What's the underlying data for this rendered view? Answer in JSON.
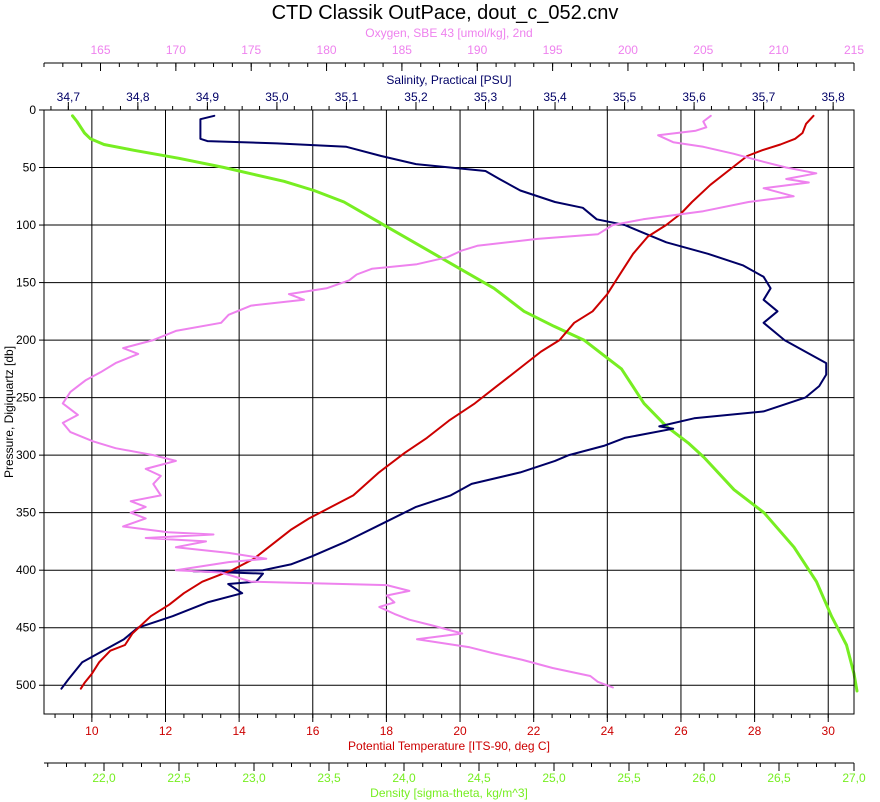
{
  "chart_data": {
    "type": "line",
    "title": "CTD Classik OutPace, dout_c_052.cnv",
    "grid": true,
    "y_axis": {
      "label": "Pressure, Digiquartz [db]",
      "range": [
        0,
        525
      ],
      "inverted": true,
      "ticks": [
        "0",
        "50",
        "100",
        "150",
        "200",
        "250",
        "300",
        "350",
        "400",
        "450",
        "500"
      ],
      "color": "#000000"
    },
    "x_axes": [
      {
        "id": "oxygen",
        "label": "Oxygen, SBE 43 [umol/kg], 2nd",
        "color": "#ee82ee",
        "position": "top",
        "range": [
          161.25,
          215
        ],
        "ticks": [
          "165",
          "170",
          "175",
          "180",
          "185",
          "190",
          "195",
          "200",
          "205",
          "210",
          "215"
        ]
      },
      {
        "id": "salinity",
        "label": "Salinity, Practical [PSU]",
        "color": "#000066",
        "position": "top",
        "range": [
          34.665,
          35.83
        ],
        "ticks": [
          "34,7",
          "34,8",
          "34,9",
          "35,0",
          "35,1",
          "35,2",
          "35,3",
          "35,4",
          "35,5",
          "35,6",
          "35,7",
          "35,8"
        ]
      },
      {
        "id": "temperature",
        "label": "Potential Temperature [ITS-90, deg C]",
        "color": "#cc0000",
        "position": "bottom",
        "range": [
          8.7,
          30.7
        ],
        "ticks": [
          "10",
          "12",
          "14",
          "16",
          "18",
          "20",
          "22",
          "24",
          "26",
          "28",
          "30"
        ]
      },
      {
        "id": "density",
        "label": "Density [sigma-theta, kg/m^3]",
        "color": "#77ee22",
        "position": "bottom",
        "range": [
          21.6,
          27.0
        ],
        "ticks": [
          "22,0",
          "22,5",
          "23,0",
          "23,5",
          "24,0",
          "24,5",
          "25,0",
          "25,5",
          "26,0",
          "26,5",
          "27,0"
        ]
      }
    ],
    "series": [
      {
        "axis": "density",
        "color": "#77ee22",
        "points": [
          [
            21.79,
            5
          ],
          [
            21.82,
            10
          ],
          [
            21.87,
            20
          ],
          [
            21.91,
            25
          ],
          [
            22.0,
            30
          ],
          [
            22.2,
            35
          ],
          [
            22.5,
            42
          ],
          [
            22.8,
            50
          ],
          [
            23.0,
            56
          ],
          [
            23.2,
            62
          ],
          [
            23.4,
            70
          ],
          [
            23.6,
            80
          ],
          [
            23.8,
            95
          ],
          [
            24.0,
            110
          ],
          [
            24.2,
            125
          ],
          [
            24.4,
            140
          ],
          [
            24.6,
            155
          ],
          [
            24.7,
            165
          ],
          [
            24.8,
            175
          ],
          [
            25.0,
            188
          ],
          [
            25.2,
            200
          ],
          [
            25.35,
            215
          ],
          [
            25.45,
            225
          ],
          [
            25.5,
            235
          ],
          [
            25.6,
            255
          ],
          [
            25.75,
            275
          ],
          [
            25.9,
            290
          ],
          [
            26.0,
            302
          ],
          [
            26.2,
            330
          ],
          [
            26.4,
            350
          ],
          [
            26.6,
            380
          ],
          [
            26.75,
            410
          ],
          [
            26.85,
            440
          ],
          [
            26.95,
            465
          ],
          [
            27.0,
            490
          ],
          [
            27.02,
            505
          ]
        ]
      },
      {
        "axis": "salinity",
        "color": "#000066",
        "points": [
          [
            34.91,
            5
          ],
          [
            34.89,
            8
          ],
          [
            34.89,
            15
          ],
          [
            34.89,
            25
          ],
          [
            34.9,
            27
          ],
          [
            35.0,
            29
          ],
          [
            35.1,
            32
          ],
          [
            35.15,
            40
          ],
          [
            35.2,
            47
          ],
          [
            35.3,
            53
          ],
          [
            35.32,
            60
          ],
          [
            35.35,
            70
          ],
          [
            35.4,
            80
          ],
          [
            35.44,
            85
          ],
          [
            35.46,
            95
          ],
          [
            35.5,
            100
          ],
          [
            35.52,
            105
          ],
          [
            35.56,
            115
          ],
          [
            35.62,
            125
          ],
          [
            35.67,
            135
          ],
          [
            35.7,
            145
          ],
          [
            35.71,
            155
          ],
          [
            35.7,
            165
          ],
          [
            35.72,
            175
          ],
          [
            35.7,
            185
          ],
          [
            35.73,
            200
          ],
          [
            35.76,
            210
          ],
          [
            35.79,
            220
          ],
          [
            35.79,
            230
          ],
          [
            35.78,
            240
          ],
          [
            35.76,
            250
          ],
          [
            35.7,
            262
          ],
          [
            35.6,
            268
          ],
          [
            35.55,
            275
          ],
          [
            35.57,
            277
          ],
          [
            35.5,
            285
          ],
          [
            35.47,
            292
          ],
          [
            35.42,
            300
          ],
          [
            35.4,
            305
          ],
          [
            35.35,
            315
          ],
          [
            35.28,
            325
          ],
          [
            35.25,
            335
          ],
          [
            35.2,
            345
          ],
          [
            35.15,
            360
          ],
          [
            35.1,
            375
          ],
          [
            35.05,
            388
          ],
          [
            35.02,
            395
          ],
          [
            34.98,
            400
          ],
          [
            34.88,
            401
          ],
          [
            34.98,
            403
          ],
          [
            34.97,
            410
          ],
          [
            34.93,
            412
          ],
          [
            34.95,
            420
          ],
          [
            34.9,
            428
          ],
          [
            34.85,
            440
          ],
          [
            34.8,
            450
          ],
          [
            34.78,
            460
          ],
          [
            34.75,
            470
          ],
          [
            34.72,
            480
          ],
          [
            34.7,
            495
          ],
          [
            34.69,
            503
          ]
        ]
      },
      {
        "axis": "temperature",
        "color": "#cc0000",
        "points": [
          [
            29.6,
            5
          ],
          [
            29.4,
            12
          ],
          [
            29.3,
            20
          ],
          [
            29.1,
            25
          ],
          [
            28.7,
            30
          ],
          [
            28.2,
            35
          ],
          [
            27.8,
            40
          ],
          [
            27.4,
            50
          ],
          [
            26.8,
            65
          ],
          [
            26.3,
            80
          ],
          [
            26.0,
            90
          ],
          [
            25.6,
            100
          ],
          [
            25.1,
            110
          ],
          [
            24.7,
            125
          ],
          [
            24.4,
            140
          ],
          [
            24.0,
            160
          ],
          [
            23.6,
            175
          ],
          [
            23.1,
            185
          ],
          [
            22.7,
            200
          ],
          [
            22.2,
            210
          ],
          [
            21.6,
            225
          ],
          [
            21.0,
            240
          ],
          [
            20.4,
            255
          ],
          [
            19.7,
            270
          ],
          [
            19.1,
            285
          ],
          [
            18.5,
            298
          ],
          [
            17.8,
            315
          ],
          [
            17.1,
            335
          ],
          [
            16.5,
            345
          ],
          [
            15.9,
            355
          ],
          [
            15.4,
            365
          ],
          [
            15.0,
            375
          ],
          [
            14.4,
            390
          ],
          [
            13.8,
            400
          ],
          [
            13.0,
            410
          ],
          [
            12.5,
            420
          ],
          [
            12.1,
            430
          ],
          [
            11.6,
            440
          ],
          [
            11.1,
            455
          ],
          [
            10.9,
            465
          ],
          [
            10.5,
            470
          ],
          [
            10.2,
            480
          ],
          [
            10.0,
            490
          ],
          [
            9.8,
            498
          ],
          [
            9.7,
            503
          ]
        ]
      },
      {
        "axis": "oxygen",
        "color": "#ee82ee",
        "points": [
          [
            205.5,
            5
          ],
          [
            205.0,
            10
          ],
          [
            205.2,
            15
          ],
          [
            204.5,
            18
          ],
          [
            202.0,
            22
          ],
          [
            203.0,
            28
          ],
          [
            205.0,
            32
          ],
          [
            207.0,
            38
          ],
          [
            209.0,
            45
          ],
          [
            210.5,
            50
          ],
          [
            212.5,
            55
          ],
          [
            210.5,
            60
          ],
          [
            212.0,
            63
          ],
          [
            209.0,
            68
          ],
          [
            211.0,
            75
          ],
          [
            208.0,
            80
          ],
          [
            205.0,
            88
          ],
          [
            201.0,
            95
          ],
          [
            199.0,
            100
          ],
          [
            198.0,
            108
          ],
          [
            194.0,
            112
          ],
          [
            190.0,
            118
          ],
          [
            189.0,
            122
          ],
          [
            188.0,
            128
          ],
          [
            186.0,
            134
          ],
          [
            183.0,
            138
          ],
          [
            182.0,
            143
          ],
          [
            181.5,
            148
          ],
          [
            180.0,
            155
          ],
          [
            177.5,
            160
          ],
          [
            178.5,
            165
          ],
          [
            175.0,
            170
          ],
          [
            173.5,
            178
          ],
          [
            173.0,
            185
          ],
          [
            170.0,
            192
          ],
          [
            168.5,
            200
          ],
          [
            166.5,
            207
          ],
          [
            167.5,
            212
          ],
          [
            166.0,
            220
          ],
          [
            165.0,
            228
          ],
          [
            164.0,
            235
          ],
          [
            163.0,
            245
          ],
          [
            162.5,
            255
          ],
          [
            163.5,
            265
          ],
          [
            162.5,
            272
          ],
          [
            163.0,
            280
          ],
          [
            164.5,
            288
          ],
          [
            166.0,
            294
          ],
          [
            168.5,
            300
          ],
          [
            170.0,
            305
          ],
          [
            168.0,
            312
          ],
          [
            169.0,
            318
          ],
          [
            168.5,
            325
          ],
          [
            169.0,
            335
          ],
          [
            167.0,
            340
          ],
          [
            168.0,
            345
          ],
          [
            167.0,
            350
          ],
          [
            168.0,
            355
          ],
          [
            166.5,
            362
          ],
          [
            169.5,
            367
          ],
          [
            172.5,
            369
          ],
          [
            168.0,
            372
          ],
          [
            172.0,
            375
          ],
          [
            170.0,
            380
          ],
          [
            173.5,
            385
          ],
          [
            176.0,
            390
          ],
          [
            173.5,
            393
          ],
          [
            170.0,
            400
          ],
          [
            173.0,
            402
          ],
          [
            175.0,
            410
          ],
          [
            184.0,
            413
          ],
          [
            185.5,
            418
          ],
          [
            184.0,
            422
          ],
          [
            184.5,
            428
          ],
          [
            183.5,
            432
          ],
          [
            184.5,
            438
          ],
          [
            185.5,
            443
          ],
          [
            187.0,
            448
          ],
          [
            189.0,
            455
          ],
          [
            186.0,
            460
          ],
          [
            189.5,
            467
          ],
          [
            191.0,
            472
          ],
          [
            193.0,
            478
          ],
          [
            195.0,
            485
          ],
          [
            197.5,
            492
          ],
          [
            198.0,
            497
          ],
          [
            199.0,
            502
          ]
        ]
      }
    ]
  }
}
